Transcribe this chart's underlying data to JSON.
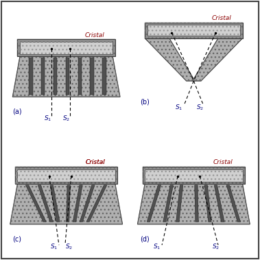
{
  "bg": "#ffffff",
  "gray_body": "#b0b0b0",
  "gray_septa": "#505050",
  "gray_crystal_outer": "#909090",
  "gray_crystal_inner": "#d0d0d0",
  "cristal_label": "Cristal",
  "panel_labels": [
    "(a)",
    "(b)",
    "(c)",
    "(d)"
  ],
  "label_color": "#000080",
  "cristal_color": "#8b0000",
  "line_color": "#000000",
  "border_color": "#555555"
}
